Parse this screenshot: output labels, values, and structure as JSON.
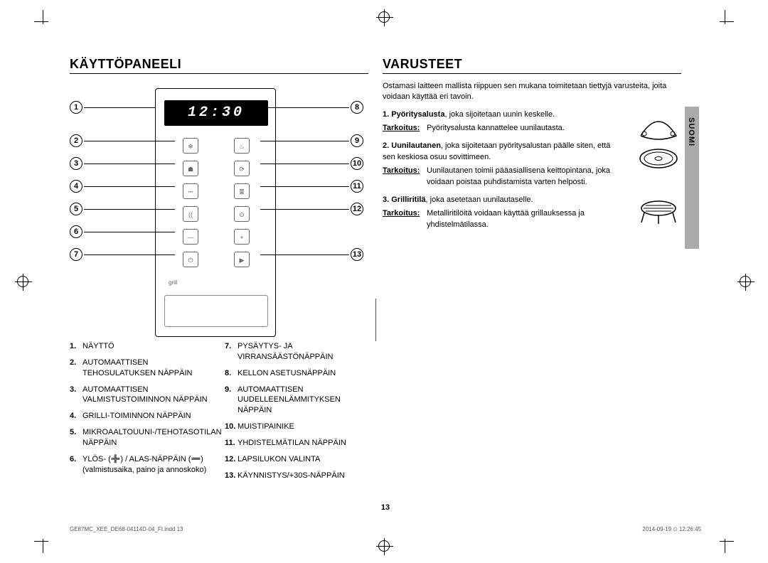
{
  "language_tab": "SUOMI",
  "page_number": "13",
  "footer": {
    "left": "GE87MC_XEE_DE68-04114D-04_FI.indd   13",
    "right": "2014-09-19   ⏲ 12:26:45"
  },
  "left_section": {
    "heading": "KÄYTTÖPANEELI",
    "display_value": "12:30",
    "grill_caption": "grill",
    "callouts_left": [
      "1",
      "2",
      "3",
      "4",
      "5",
      "6",
      "7"
    ],
    "callouts_right": [
      "8",
      "9",
      "10",
      "11",
      "12",
      "13"
    ],
    "button_icons": {
      "r1l": "❄",
      "r1r": "♨",
      "r2l": "☗",
      "r2r": "⟳",
      "r3l": "⎓",
      "r3r": "≣",
      "r4l": "((",
      "r4r": "⊙",
      "r5l": "—",
      "r5r": "+",
      "r6l": "⏻",
      "r6r": "▶"
    },
    "list_left": [
      {
        "n": "1.",
        "t": "NÄYTTÖ"
      },
      {
        "n": "2.",
        "t": "AUTOMAATTISEN TEHOSULATUKSEN NÄPPÄIN"
      },
      {
        "n": "3.",
        "t": "AUTOMAATTISEN VALMISTUSTOIMINNON NÄPPÄIN"
      },
      {
        "n": "4.",
        "t": "GRILLI-TOIMINNON NÄPPÄIN"
      },
      {
        "n": "5.",
        "t": "MIKROAALTOUUNI-/TEHOTASOTILAN NÄPPÄIN"
      },
      {
        "n": "6.",
        "t": "YLÖS- (➕) / ALAS-NÄPPÄIN (➖) (valmistusaika, paino ja annoskoko)"
      }
    ],
    "list_right": [
      {
        "n": "7.",
        "t": "PYSÄYTYS- JA VIRRANSÄÄSTÖNÄPPÄIN"
      },
      {
        "n": "8.",
        "t": "KELLON ASETUSNÄPPÄIN"
      },
      {
        "n": "9.",
        "t": "AUTOMAATTISEN UUDELLEENLÄMMITYKSEN NÄPPÄIN"
      },
      {
        "n": "10.",
        "t": "MUISTIPAINIKE"
      },
      {
        "n": "11.",
        "t": "YHDISTELMÄTILAN NÄPPÄIN"
      },
      {
        "n": "12.",
        "t": "LAPSILUKON VALINTA"
      },
      {
        "n": "13.",
        "t": "KÄYNNISTYS/+30S-NÄPPÄIN"
      }
    ]
  },
  "right_section": {
    "heading": "VARUSTEET",
    "intro": "Ostamasi laitteen mallista riippuen sen mukana toimitetaan tiettyjä varusteita, joita voidaan käyttää eri tavoin.",
    "tarkoitus_label": "Tarkoitus:",
    "items": [
      {
        "n": "1.",
        "name": "Pyöritysalusta",
        "desc": ", joka sijoitetaan uunin keskelle.",
        "purpose": "Pyöritysalusta kannattelee uunilautasta."
      },
      {
        "n": "2.",
        "name": "Uunilautanen",
        "desc": ", joka sijoitetaan pyöritysalustan päälle siten, että sen keskiosa osuu sovittimeen.",
        "purpose": "Uunilautanen toimii pääasiallisena keittopintana, joka voidaan poistaa puhdistamista varten helposti."
      },
      {
        "n": "3.",
        "name": "Grilliritilä",
        "desc": ", joka asetetaan uunilautaselle.",
        "purpose": "Metalliritilöitä voidaan käyttää grillauksessa ja yhdistelmätilassa."
      }
    ]
  }
}
